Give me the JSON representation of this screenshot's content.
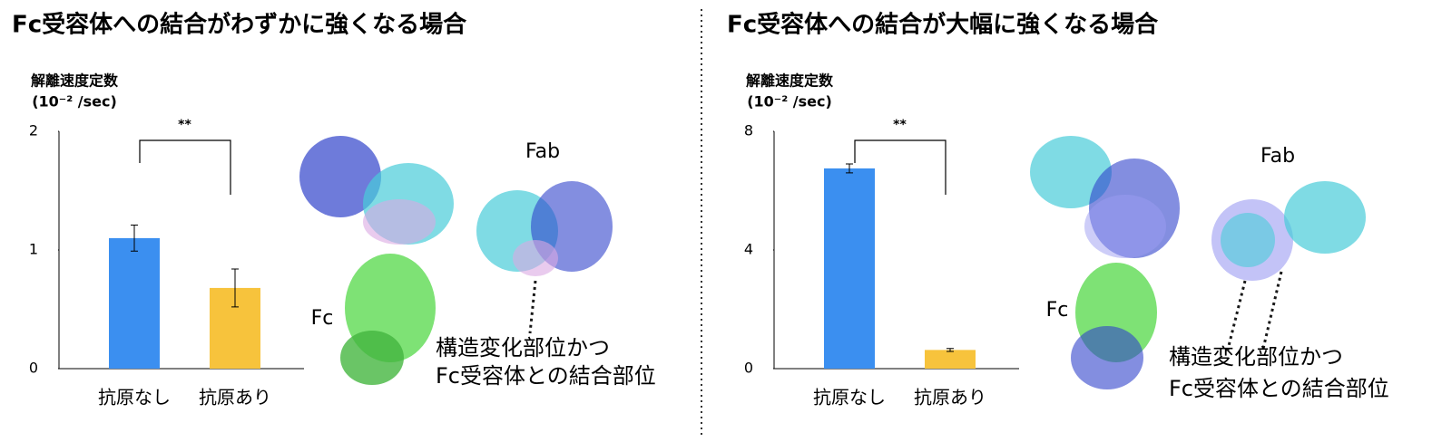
{
  "chart_data": [
    {
      "type": "bar",
      "title": "Fc受容体への結合がわずかに強くなる場合",
      "y_label": [
        "解離速度定数",
        "(10⁻² /sec)"
      ],
      "categories": [
        "抗原なし",
        "抗原あり"
      ],
      "values": [
        1.1,
        0.68
      ],
      "errors": [
        0.11,
        0.16
      ],
      "colors": [
        "#3b8ff0",
        "#f7c33c"
      ],
      "ylim": [
        0,
        2
      ],
      "yticks": [
        0,
        1,
        2
      ],
      "significance": "**",
      "annotations": [
        "Fab",
        "Fc",
        "構造変化部位かつ",
        "Fc受容体との結合部位"
      ]
    },
    {
      "type": "bar",
      "title": "Fc受容体への結合が大幅に強くなる場合",
      "y_label": [
        "解離速度定数",
        "(10⁻² /sec)"
      ],
      "categories": [
        "抗原なし",
        "抗原あり"
      ],
      "values": [
        6.75,
        0.63
      ],
      "errors": [
        0.15,
        0.05
      ],
      "colors": [
        "#3b8ff0",
        "#f7c33c"
      ],
      "ylim": [
        0,
        8
      ],
      "yticks": [
        0,
        4,
        8
      ],
      "significance": "**",
      "annotations": [
        "Fab",
        "Fc",
        "構造変化部位かつ",
        "Fc受容体との結合部位"
      ]
    }
  ]
}
